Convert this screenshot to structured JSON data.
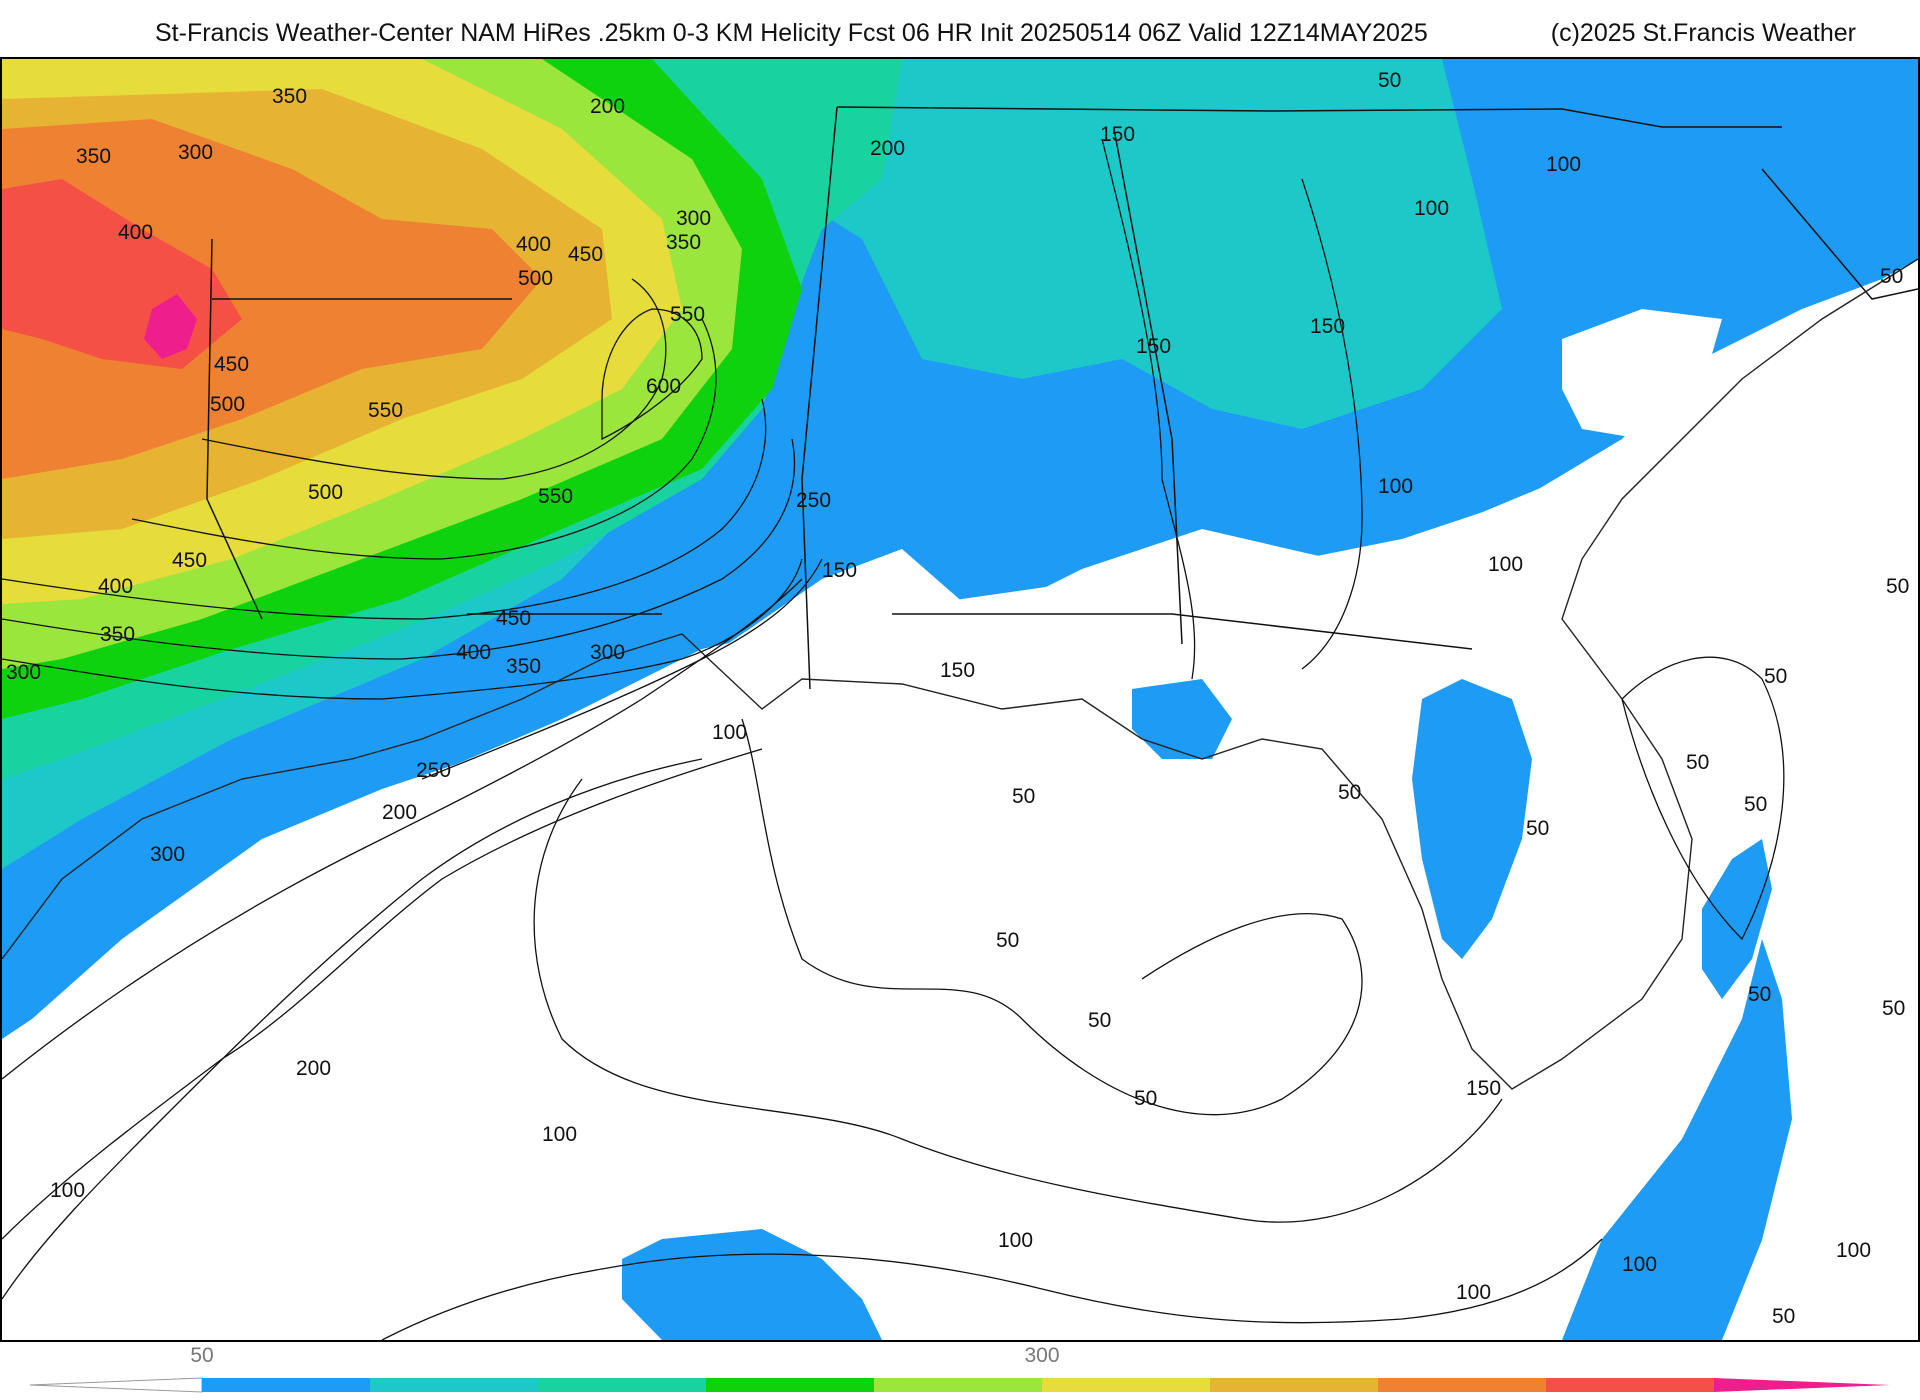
{
  "header": {
    "title": "St-Francis Weather-Center NAM HiRes .25km 0-3 KM Helicity Fcst 06 HR Init 20250514 06Z  Valid 12Z14MAY2025",
    "copyright": "(c)2025 St.Francis Weather"
  },
  "map": {
    "region": "Southeastern United States and Gulf of Mexico",
    "field": "0-3 KM Helicity",
    "contour_labels": [
      "350",
      "350",
      "300",
      "400",
      "450",
      "500",
      "550",
      "500",
      "450",
      "400",
      "350",
      "300",
      "200",
      "200",
      "300",
      "350",
      "400",
      "450",
      "500",
      "550",
      "600",
      "550",
      "450",
      "400",
      "350",
      "300",
      "250",
      "250",
      "200",
      "300",
      "150",
      "150",
      "150",
      "150",
      "100",
      "100",
      "100",
      "50",
      "50",
      "150",
      "100",
      "100",
      "50",
      "50",
      "50",
      "50",
      "50",
      "50",
      "50",
      "50",
      "50",
      "50",
      "150",
      "100",
      "200",
      "100",
      "100",
      "100",
      "100",
      "100",
      "50",
      "50",
      "50"
    ]
  },
  "colorbar": {
    "tick_labels": [
      "50",
      "300"
    ],
    "colors": [
      "#ffffff",
      "#1e9bf5",
      "#1cc8c8",
      "#18d2a0",
      "#0fd20f",
      "#9be63c",
      "#e6dc3c",
      "#e6b432",
      "#ee8232",
      "#f55046",
      "#ee1e8c"
    ]
  },
  "colors": {
    "blue": "#1e9bf5",
    "teal": "#1cc8c8",
    "seafoam": "#18d2a0",
    "green": "#0fd20f",
    "yellow_green": "#9be63c",
    "yellow": "#e6dc3c",
    "gold": "#e6b432",
    "orange": "#ee8232",
    "red": "#f55046",
    "magenta": "#ee1e8c"
  }
}
